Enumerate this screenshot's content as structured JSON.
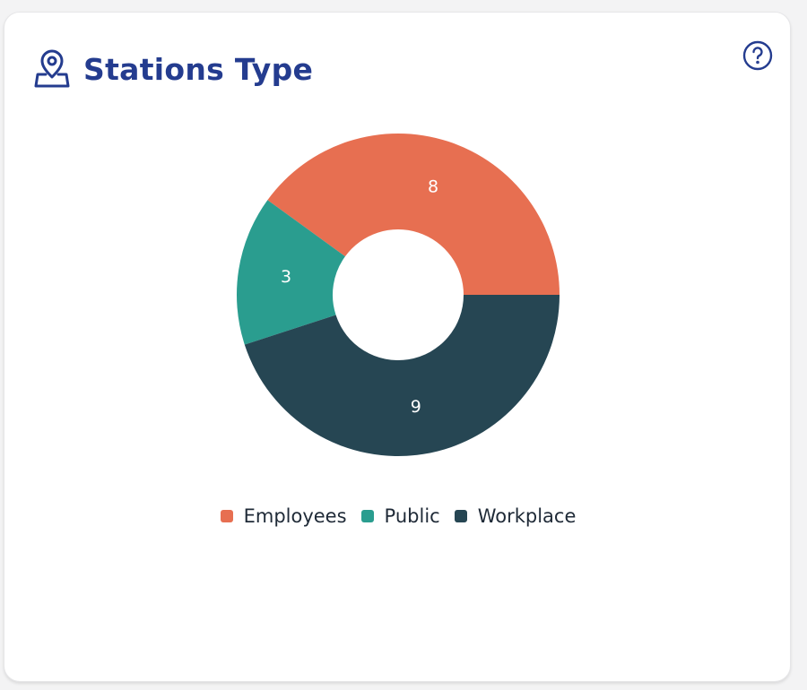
{
  "header": {
    "title": "Stations Type",
    "title_icon": "map-pin-icon",
    "help_icon": "help-circle-icon"
  },
  "colors": {
    "title": "#243c8f",
    "employees": "#e76f51",
    "public": "#2a9d8f",
    "workplace": "#264653"
  },
  "chart_data": {
    "type": "pie",
    "donut": true,
    "categories": [
      "Employees",
      "Public",
      "Workplace"
    ],
    "values": [
      8,
      3,
      9
    ],
    "colors": [
      "#e76f51",
      "#2a9d8f",
      "#264653"
    ],
    "title": "Stations Type",
    "legend_position": "bottom"
  }
}
